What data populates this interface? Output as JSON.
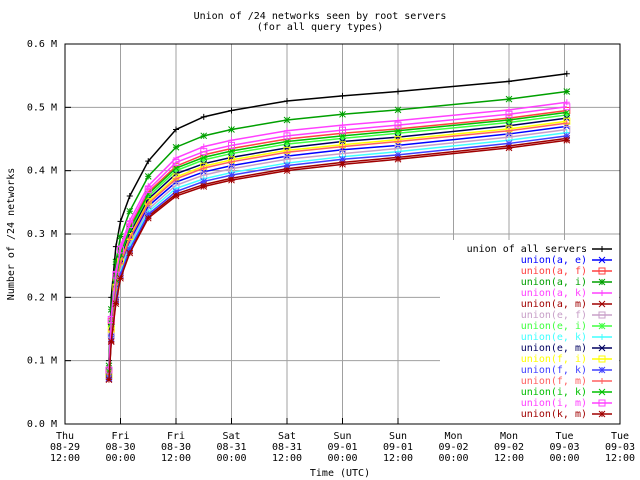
{
  "chart_data": {
    "type": "line",
    "title": "Union of /24 networks seen by root servers",
    "subtitle": "(for all query types)",
    "xlabel": "Time (UTC)",
    "ylabel": "Number of /24 networks",
    "x": [
      "08-29 21:30",
      "08-29 22:00",
      "08-29 23:00",
      "08-30 00:00",
      "08-30 02:00",
      "08-30 06:00",
      "08-30 12:00",
      "08-30 18:00",
      "08-31 00:00",
      "08-31 12:00",
      "09-01 00:00",
      "09-01 12:00",
      "09-02 12:00",
      "09-03 00:30"
    ],
    "xlim": [
      "08-29 12:00",
      "09-03 12:00"
    ],
    "xticks": [
      {
        "value": "08-29 12:00",
        "label": "Thu 08-29 12:00"
      },
      {
        "value": "08-30 00:00",
        "label": "Fri 08-30 00:00"
      },
      {
        "value": "08-30 12:00",
        "label": "Fri 08-30 12:00"
      },
      {
        "value": "08-31 00:00",
        "label": "Sat 08-31 00:00"
      },
      {
        "value": "08-31 12:00",
        "label": "Sat 08-31 12:00"
      },
      {
        "value": "09-01 00:00",
        "label": "Sun 09-01 00:00"
      },
      {
        "value": "09-01 12:00",
        "label": "Sun 09-01 12:00"
      },
      {
        "value": "09-02 00:00",
        "label": "Mon 09-02 00:00"
      },
      {
        "value": "09-02 12:00",
        "label": "Mon 09-02 12:00"
      },
      {
        "value": "09-03 00:00",
        "label": "Tue 09-03 00:00"
      },
      {
        "value": "09-03 12:00",
        "label": "Tue 09-03 12:00"
      }
    ],
    "ylim": [
      0,
      0.6
    ],
    "yticks": [
      {
        "value": 0,
        "label": "0.0 M"
      },
      {
        "value": 0.1,
        "label": "0.1 M"
      },
      {
        "value": 0.2,
        "label": "0.2 M"
      },
      {
        "value": 0.3,
        "label": "0.3 M"
      },
      {
        "value": 0.4,
        "label": "0.4 M"
      },
      {
        "value": 0.5,
        "label": "0.5 M"
      },
      {
        "value": 0.6,
        "label": "0.6 M"
      }
    ],
    "grid": true,
    "legend": "right",
    "series": [
      {
        "name": "union of all servers",
        "color": "#000000",
        "values": [
          0.1,
          0.2,
          0.28,
          0.32,
          0.36,
          0.415,
          0.465,
          0.485,
          0.495,
          0.51,
          0.518,
          0.525,
          0.541,
          0.553
        ]
      },
      {
        "name": "union(a, e)",
        "color": "#0000ff",
        "values": [
          0.076,
          0.145,
          0.209,
          0.249,
          0.289,
          0.344,
          0.382,
          0.398,
          0.408,
          0.423,
          0.433,
          0.44,
          0.458,
          0.47
        ]
      },
      {
        "name": "union(a, f)",
        "color": "#ff4040",
        "values": [
          0.084,
          0.162,
          0.231,
          0.271,
          0.311,
          0.366,
          0.407,
          0.425,
          0.435,
          0.45,
          0.459,
          0.466,
          0.483,
          0.495
        ]
      },
      {
        "name": "union(a, i)",
        "color": "#00a000",
        "values": [
          0.092,
          0.181,
          0.256,
          0.296,
          0.336,
          0.391,
          0.437,
          0.455,
          0.465,
          0.48,
          0.489,
          0.496,
          0.513,
          0.525
        ]
      },
      {
        "name": "union(a, k)",
        "color": "#ff40ff",
        "values": [
          0.087,
          0.17,
          0.241,
          0.281,
          0.321,
          0.376,
          0.42,
          0.438,
          0.448,
          0.463,
          0.472,
          0.479,
          0.496,
          0.508
        ]
      },
      {
        "name": "union(a, m)",
        "color": "#a00000",
        "values": [
          0.071,
          0.132,
          0.193,
          0.233,
          0.273,
          0.328,
          0.363,
          0.378,
          0.388,
          0.403,
          0.413,
          0.421,
          0.439,
          0.451
        ]
      },
      {
        "name": "union(e, f)",
        "color": "#c8a0c8",
        "values": [
          0.075,
          0.141,
          0.204,
          0.244,
          0.284,
          0.339,
          0.377,
          0.393,
          0.403,
          0.418,
          0.427,
          0.435,
          0.453,
          0.465
        ]
      },
      {
        "name": "union(e, i)",
        "color": "#40ff40",
        "values": [
          0.081,
          0.157,
          0.224,
          0.264,
          0.304,
          0.359,
          0.4,
          0.417,
          0.427,
          0.442,
          0.451,
          0.459,
          0.476,
          0.488
        ]
      },
      {
        "name": "union(e, k)",
        "color": "#40ffff",
        "values": [
          0.073,
          0.138,
          0.2,
          0.24,
          0.28,
          0.335,
          0.372,
          0.387,
          0.397,
          0.412,
          0.422,
          0.43,
          0.448,
          0.46
        ]
      },
      {
        "name": "union(e, m)",
        "color": "#000060",
        "values": [
          0.08,
          0.153,
          0.22,
          0.26,
          0.3,
          0.355,
          0.395,
          0.411,
          0.421,
          0.436,
          0.446,
          0.453,
          0.471,
          0.483
        ]
      },
      {
        "name": "union(f, i)",
        "color": "#ffff00",
        "values": [
          0.079,
          0.15,
          0.216,
          0.256,
          0.296,
          0.351,
          0.39,
          0.407,
          0.417,
          0.432,
          0.441,
          0.449,
          0.466,
          0.478
        ]
      },
      {
        "name": "union(f, k)",
        "color": "#4040ff",
        "values": [
          0.072,
          0.135,
          0.196,
          0.236,
          0.276,
          0.331,
          0.367,
          0.383,
          0.393,
          0.408,
          0.418,
          0.425,
          0.443,
          0.455
        ]
      },
      {
        "name": "union(f, m)",
        "color": "#ff6060",
        "values": [
          0.078,
          0.148,
          0.213,
          0.253,
          0.293,
          0.348,
          0.387,
          0.404,
          0.414,
          0.429,
          0.438,
          0.446,
          0.463,
          0.475
        ]
      },
      {
        "name": "union(i, k)",
        "color": "#00c000",
        "values": [
          0.083,
          0.159,
          0.228,
          0.268,
          0.308,
          0.363,
          0.404,
          0.421,
          0.431,
          0.446,
          0.455,
          0.463,
          0.48,
          0.492
        ]
      },
      {
        "name": "union(i, m)",
        "color": "#ff40ff",
        "values": [
          0.085,
          0.165,
          0.235,
          0.275,
          0.315,
          0.37,
          0.413,
          0.43,
          0.44,
          0.455,
          0.464,
          0.472,
          0.489,
          0.501
        ]
      },
      {
        "name": "union(k, m)",
        "color": "#a00000",
        "values": [
          0.07,
          0.13,
          0.19,
          0.23,
          0.27,
          0.325,
          0.36,
          0.375,
          0.385,
          0.4,
          0.41,
          0.418,
          0.436,
          0.448
        ]
      }
    ]
  }
}
